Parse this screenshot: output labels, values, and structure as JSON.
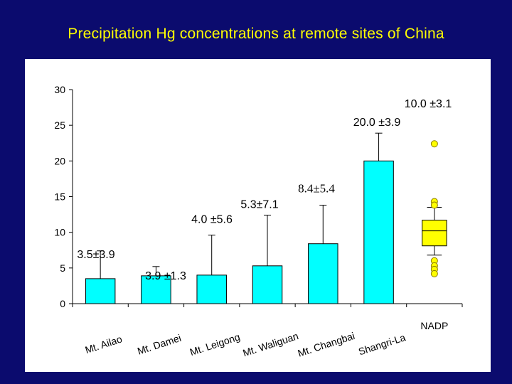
{
  "slide": {
    "title": "Precipitation Hg concentrations at remote sites of China"
  },
  "chart_data": {
    "type": "bar",
    "title": "Precipitation Hg concentrations at remote sites of China",
    "xlabel": "",
    "ylabel": "",
    "ylim": [
      0,
      30
    ],
    "yticks": [
      0,
      5,
      10,
      15,
      20,
      25,
      30
    ],
    "grid": false,
    "legend": "none",
    "colors": {
      "bar": "#00ffff",
      "box": "#ffff00",
      "outlier": "#ffff00"
    },
    "categories": [
      "Mt. Ailao",
      "Mt. Damei",
      "Mt. Leigong",
      "Mt. Waliguan",
      "Mt. Changbai",
      "Shangri-La",
      "NADP"
    ],
    "bars": [
      {
        "category": "Mt. Ailao",
        "value": 3.5,
        "err_upper": 7.4,
        "annotation": "3.5±3.9"
      },
      {
        "category": "Mt. Damei",
        "value": 3.9,
        "err_upper": 5.2,
        "annotation": "3.9 ±1.3"
      },
      {
        "category": "Mt. Leigong",
        "value": 4.0,
        "err_upper": 9.6,
        "annotation": "4.0 ±5.6"
      },
      {
        "category": "Mt. Waliguan",
        "value": 5.3,
        "err_upper": 12.4,
        "annotation": "5.3±7.1"
      },
      {
        "category": "Mt. Changbai",
        "value": 8.4,
        "err_upper": 13.8,
        "annotation": "8.4±5.4"
      },
      {
        "category": "Shangri-La",
        "value": 20.0,
        "err_upper": 23.9,
        "annotation": "20.0 ±3.9"
      }
    ],
    "box": {
      "category": "NADP",
      "annotation": "10.0 ±3.1",
      "q1": 8.1,
      "median": 10.2,
      "q3": 11.7,
      "whisker_low": 6.8,
      "whisker_high": 13.5,
      "outliers": [
        22.4,
        14.3,
        13.8,
        6.0,
        5.3,
        4.8,
        4.2
      ]
    }
  }
}
